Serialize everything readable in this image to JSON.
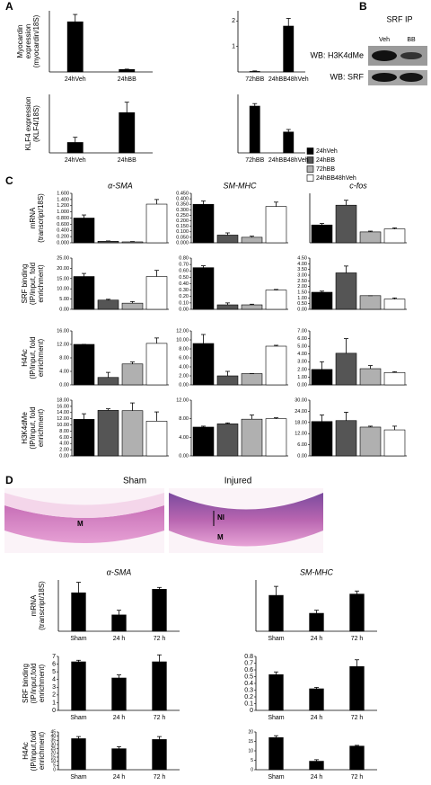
{
  "panel_labels": [
    "A",
    "B",
    "C",
    "D"
  ],
  "blot": {
    "title": "SRF IP",
    "lanes": [
      "Veh",
      "BB"
    ],
    "rows": [
      "WB: H3K4dMe",
      "WB: SRF"
    ]
  },
  "legend": [
    {
      "name": "24hVeh",
      "color": "#000000"
    },
    {
      "name": "24hBB",
      "color": "#555555"
    },
    {
      "name": "72hBB",
      "color": "#b0b0b0"
    },
    {
      "name": "24hBB48hVeh",
      "color": "#ffffff"
    }
  ],
  "histology": {
    "titles": [
      "Sham",
      "Injured"
    ],
    "labels": [
      "M",
      "NI",
      "M"
    ]
  },
  "chart_data": [
    {
      "type": "bar",
      "ylabel": [
        "Myocardin",
        "expression",
        "(myocardin/18S)"
      ],
      "categories": [
        "24hVeh",
        "24hBB"
      ],
      "values": [
        4.1,
        0.2
      ],
      "errors": [
        0.6,
        0.03
      ],
      "color": "#000000",
      "ylim": [
        0,
        5
      ]
    },
    {
      "type": "bar",
      "categories": [
        "72hBB",
        "24hBB48hVeh"
      ],
      "values": [
        0.02,
        1.8
      ],
      "errors": [
        0.02,
        0.3
      ],
      "color": "#000000",
      "ylim": [
        0,
        2.4
      ],
      "yticks": [
        1,
        2
      ]
    },
    {
      "type": "bar",
      "ylabel": [
        "KLF4 expression",
        "(KLF4/18S)"
      ],
      "categories": [
        "24hVeh",
        "24hBB"
      ],
      "values": [
        0.08,
        0.31
      ],
      "errors": [
        0.04,
        0.08
      ],
      "color": "#000000",
      "ylim": [
        0,
        0.45
      ]
    },
    {
      "type": "bar",
      "categories": [
        "72hBB",
        "24hBB48hVeh"
      ],
      "values": [
        0.56,
        0.25
      ],
      "errors": [
        0.03,
        0.03
      ],
      "color": "#000000",
      "ylim": [
        0,
        0.7
      ]
    },
    {
      "type": "bar",
      "title": "α-SMA",
      "ylabel": [
        "mRNA",
        "(transcript/18S)"
      ],
      "values": [
        0.8,
        0.05,
        0.03,
        1.25
      ],
      "errors": [
        0.1,
        0.01,
        0.01,
        0.15
      ],
      "colors": [
        "#000000",
        "#555555",
        "#b0b0b0",
        "#ffffff"
      ],
      "ylim": [
        0,
        1.6
      ],
      "yticks": [
        {
          "value": 0,
          "label": "0.000"
        },
        {
          "value": 0.2,
          "label": "0.200"
        },
        {
          "value": 0.4,
          "label": "0.400"
        },
        {
          "value": 0.6,
          "label": "0.600"
        },
        {
          "value": 0.8,
          "label": "0.800"
        },
        {
          "value": 1,
          "label": "1.000"
        },
        {
          "value": 1.2,
          "label": "1.200"
        },
        {
          "value": 1.4,
          "label": "1.400"
        },
        {
          "value": 1.6,
          "label": "1.600"
        }
      ]
    },
    {
      "type": "bar",
      "title": "SM-MHC",
      "values": [
        0.35,
        0.07,
        0.05,
        0.33
      ],
      "errors": [
        0.03,
        0.02,
        0.01,
        0.04
      ],
      "colors": [
        "#000000",
        "#555555",
        "#b0b0b0",
        "#ffffff"
      ],
      "ylim": [
        0,
        0.45
      ],
      "yticks": [
        {
          "value": 0,
          "label": "0.000"
        },
        {
          "value": 0.05,
          "label": "0.050"
        },
        {
          "value": 0.1,
          "label": "0.100"
        },
        {
          "value": 0.15,
          "label": "0.150"
        },
        {
          "value": 0.2,
          "label": "0.200"
        },
        {
          "value": 0.25,
          "label": "0.250"
        },
        {
          "value": 0.3,
          "label": "0.300"
        },
        {
          "value": 0.35,
          "label": "0.350"
        },
        {
          "value": 0.4,
          "label": "0.400"
        },
        {
          "value": 0.45,
          "label": "0.450"
        }
      ]
    },
    {
      "type": "bar",
      "title": "c-fos",
      "values": [
        1.8,
        3.8,
        1.1,
        1.4
      ],
      "errors": [
        0.15,
        0.5,
        0.08,
        0.1
      ],
      "colors": [
        "#000000",
        "#555555",
        "#b0b0b0",
        "#ffffff"
      ],
      "ylim": [
        0,
        5
      ]
    },
    {
      "type": "bar",
      "ylabel": [
        "SRF binding",
        "(IP/input, fold",
        "enrichment)"
      ],
      "values": [
        16,
        4.5,
        3,
        16
      ],
      "errors": [
        1.5,
        0.4,
        0.8,
        3
      ],
      "colors": [
        "#000000",
        "#555555",
        "#b0b0b0",
        "#ffffff"
      ],
      "ylim": [
        0,
        25
      ],
      "yticks": [
        {
          "value": 0,
          "label": "0.00"
        },
        {
          "value": 5,
          "label": "5.00"
        },
        {
          "value": 10,
          "label": "10.00"
        },
        {
          "value": 15,
          "label": "15.00"
        },
        {
          "value": 20,
          "label": "20.00"
        },
        {
          "value": 25,
          "label": "25.00"
        }
      ]
    },
    {
      "type": "bar",
      "values": [
        0.65,
        0.07,
        0.07,
        0.3
      ],
      "errors": [
        0.03,
        0.03,
        0.01,
        0.01
      ],
      "colors": [
        "#000000",
        "#555555",
        "#b0b0b0",
        "#ffffff"
      ],
      "ylim": [
        0,
        0.8
      ],
      "yticks": [
        {
          "value": 0,
          "label": "0.00"
        },
        {
          "value": 0.1,
          "label": "0.10"
        },
        {
          "value": 0.2,
          "label": "0.20"
        },
        {
          "value": 0.3,
          "label": "0.30"
        },
        {
          "value": 0.4,
          "label": "0.40"
        },
        {
          "value": 0.5,
          "label": "0.50"
        },
        {
          "value": 0.6,
          "label": "0.60"
        },
        {
          "value": 0.7,
          "label": "0.70"
        },
        {
          "value": 0.8,
          "label": "0.80"
        }
      ]
    },
    {
      "type": "bar",
      "values": [
        1.5,
        3.2,
        1.2,
        0.9
      ],
      "errors": [
        0.1,
        0.6,
        0,
        0.1
      ],
      "colors": [
        "#000000",
        "#555555",
        "#b0b0b0",
        "#ffffff"
      ],
      "ylim": [
        0,
        4.5
      ],
      "yticks": [
        {
          "value": 0,
          "label": "0.00"
        },
        {
          "value": 0.5,
          "label": "0.50"
        },
        {
          "value": 1,
          "label": "1.00"
        },
        {
          "value": 1.5,
          "label": "1.50"
        },
        {
          "value": 2,
          "label": "2.00"
        },
        {
          "value": 2.5,
          "label": "2.50"
        },
        {
          "value": 3,
          "label": "3.00"
        },
        {
          "value": 3.5,
          "label": "3.50"
        },
        {
          "value": 4,
          "label": "4.00"
        },
        {
          "value": 4.5,
          "label": "4.50"
        }
      ]
    },
    {
      "type": "bar",
      "ylabel": [
        "H4Ac",
        "(IP/input, fold",
        "enrichment)"
      ],
      "values": [
        12,
        2.2,
        6.2,
        12.3
      ],
      "errors": [
        0,
        1.5,
        0.6,
        1.6
      ],
      "colors": [
        "#000000",
        "#555555",
        "#b0b0b0",
        "#ffffff"
      ],
      "ylim": [
        0,
        16
      ],
      "yticks": [
        {
          "value": 0,
          "label": "0.00"
        },
        {
          "value": 4,
          "label": "4.00"
        },
        {
          "value": 8,
          "label": "8.00"
        },
        {
          "value": 12,
          "label": "12.00"
        },
        {
          "value": 16,
          "label": "16.00"
        }
      ]
    },
    {
      "type": "bar",
      "values": [
        9.2,
        2,
        2.5,
        8.6
      ],
      "errors": [
        2,
        1,
        0,
        0.2
      ],
      "colors": [
        "#000000",
        "#555555",
        "#b0b0b0",
        "#ffffff"
      ],
      "ylim": [
        0,
        12
      ],
      "yticks": [
        {
          "value": 0,
          "label": "0.00"
        },
        {
          "value": 2,
          "label": "2.00"
        },
        {
          "value": 4,
          "label": "4.00"
        },
        {
          "value": 6,
          "label": "6.00"
        },
        {
          "value": 8,
          "label": "8.00"
        },
        {
          "value": 10,
          "label": "10.00"
        },
        {
          "value": 12,
          "label": "12.00"
        }
      ]
    },
    {
      "type": "bar",
      "values": [
        2,
        4.1,
        2.1,
        1.6
      ],
      "errors": [
        1,
        1.9,
        0.4,
        0.1
      ],
      "colors": [
        "#000000",
        "#555555",
        "#b0b0b0",
        "#ffffff"
      ],
      "ylim": [
        0,
        7
      ],
      "yticks": [
        {
          "value": 0,
          "label": "0.00"
        },
        {
          "value": 1,
          "label": "1.00"
        },
        {
          "value": 2,
          "label": "2.00"
        },
        {
          "value": 3,
          "label": "3.00"
        },
        {
          "value": 4,
          "label": "4.00"
        },
        {
          "value": 5,
          "label": "5.00"
        },
        {
          "value": 6,
          "label": "6.00"
        },
        {
          "value": 7,
          "label": "7.00"
        }
      ]
    },
    {
      "type": "bar",
      "ylabel": [
        "H3K4dMe",
        "(IP/input, fold",
        "enrichment)"
      ],
      "values": [
        11.8,
        14.7,
        14.6,
        11.2
      ],
      "errors": [
        1.8,
        0.5,
        2.5,
        3
      ],
      "colors": [
        "#000000",
        "#555555",
        "#b0b0b0",
        "#ffffff"
      ],
      "ylim": [
        0,
        18
      ],
      "yticks": [
        {
          "value": 0,
          "label": "0.00"
        },
        {
          "value": 2,
          "label": "2.00"
        },
        {
          "value": 4,
          "label": "4.00"
        },
        {
          "value": 6,
          "label": "6.00"
        },
        {
          "value": 8,
          "label": "8.00"
        },
        {
          "value": 10,
          "label": "10.00"
        },
        {
          "value": 12,
          "label": "12.00"
        },
        {
          "value": 14,
          "label": "14.00"
        },
        {
          "value": 16,
          "label": "16.00"
        },
        {
          "value": 18,
          "label": "18.00"
        }
      ]
    },
    {
      "type": "bar",
      "values": [
        6.2,
        6.9,
        7.9,
        8
      ],
      "errors": [
        0.2,
        0.2,
        0.9,
        0.2
      ],
      "colors": [
        "#000000",
        "#555555",
        "#b0b0b0",
        "#ffffff"
      ],
      "ylim": [
        0,
        12
      ],
      "yticks": [
        {
          "value": 0,
          "label": "0.00"
        },
        {
          "value": 4,
          "label": "4.00"
        },
        {
          "value": 8,
          "label": "8.00"
        },
        {
          "value": 12,
          "label": "12.00"
        }
      ]
    },
    {
      "type": "bar",
      "values": [
        18.5,
        19,
        15.5,
        14
      ],
      "errors": [
        3.5,
        4.5,
        0.5,
        2
      ],
      "colors": [
        "#000000",
        "#555555",
        "#b0b0b0",
        "#ffffff"
      ],
      "ylim": [
        0,
        30
      ],
      "yticks": [
        {
          "value": 0,
          "label": "0.00"
        },
        {
          "value": 6,
          "label": "6.00"
        },
        {
          "value": 12,
          "label": "12.00"
        },
        {
          "value": 18,
          "label": "18.00"
        },
        {
          "value": 24,
          "label": "24.00"
        },
        {
          "value": 30,
          "label": "30.00"
        }
      ]
    },
    {
      "type": "bar",
      "title": "α-SMA",
      "ylabel": [
        "mRNA",
        "(transcript/18S)"
      ],
      "categories": [
        "Sham",
        "24 h",
        "72 h"
      ],
      "values": [
        1.65,
        0.7,
        1.8
      ],
      "errors": [
        0.45,
        0.2,
        0.08
      ],
      "color": "#000000",
      "ylim": [
        0,
        2.2
      ]
    },
    {
      "type": "bar",
      "title": "SM-MHC",
      "categories": [
        "Sham",
        "24 h",
        "72 h"
      ],
      "values": [
        1.4,
        0.7,
        1.45
      ],
      "errors": [
        0.35,
        0.12,
        0.12
      ],
      "color": "#000000",
      "ylim": [
        0,
        2
      ]
    },
    {
      "type": "bar",
      "ylabel": [
        "SRF binding",
        "(IP/input,fold",
        "enrichment)"
      ],
      "categories": [
        "Sham",
        "24 h",
        "72 h"
      ],
      "values": [
        6.3,
        4.2,
        6.3
      ],
      "errors": [
        0.2,
        0.4,
        0.9
      ],
      "color": "#000000",
      "ylim": [
        0,
        7
      ],
      "yticks": [
        0,
        1,
        2,
        3,
        4,
        5,
        6,
        7
      ]
    },
    {
      "type": "bar",
      "categories": [
        "Sham",
        "24 h",
        "72 h"
      ],
      "values": [
        0.53,
        0.32,
        0.65
      ],
      "errors": [
        0.04,
        0.02,
        0.1
      ],
      "color": "#000000",
      "ylim": [
        0,
        0.8
      ],
      "yticks": [
        0,
        0.1,
        0.2,
        0.3,
        0.4,
        0.5,
        0.6,
        0.7,
        0.8
      ]
    },
    {
      "type": "bar",
      "ylabel": [
        "H4Ac",
        "(IP/input,fold",
        "enrichment)"
      ],
      "categories": [
        "Sham",
        "24 h",
        "72 h"
      ],
      "values": [
        37,
        25,
        36
      ],
      "errors": [
        2.5,
        2.5,
        3.5
      ],
      "color": "#000000",
      "ylim": [
        0,
        45
      ],
      "yticks": [
        0,
        5,
        10,
        15,
        20,
        25,
        30,
        35,
        40,
        45
      ]
    },
    {
      "type": "bar",
      "categories": [
        "Sham",
        "24 h",
        "72 h"
      ],
      "values": [
        17,
        4.5,
        12.5
      ],
      "errors": [
        1,
        0.8,
        0.4
      ],
      "color": "#000000",
      "ylim": [
        0,
        20
      ],
      "yticks": [
        0,
        5,
        10,
        15,
        20
      ]
    }
  ]
}
